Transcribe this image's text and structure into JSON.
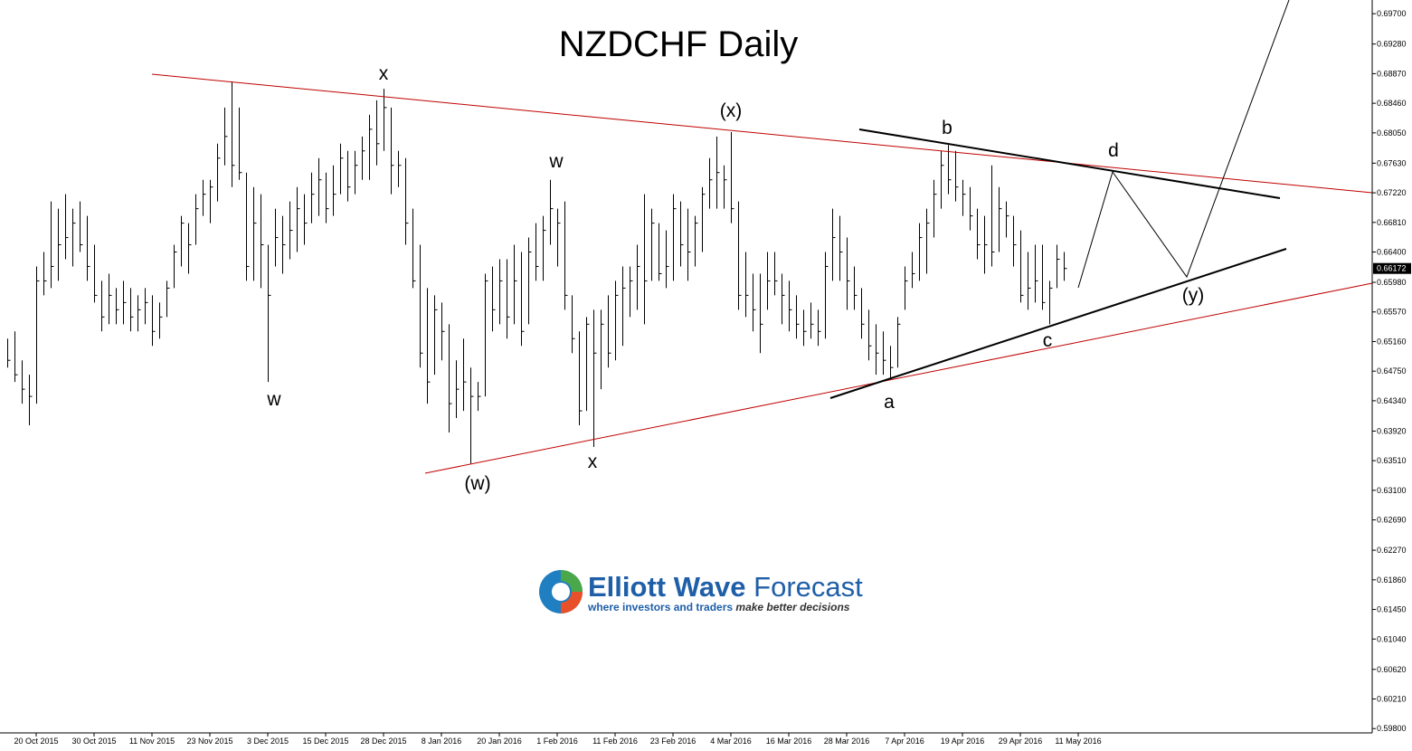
{
  "chart_data": {
    "type": "ohlc",
    "title": "NZDCHF Daily",
    "categories": [
      null,
      null,
      null,
      null,
      "20 Oct 2015",
      null,
      null,
      null,
      null,
      null,
      null,
      null,
      "30 Oct 2015",
      null,
      null,
      null,
      null,
      null,
      null,
      null,
      "11 Nov 2015",
      null,
      null,
      null,
      null,
      null,
      null,
      null,
      "23 Nov 2015",
      null,
      null,
      null,
      null,
      null,
      null,
      null,
      "3 Dec 2015",
      null,
      null,
      null,
      null,
      null,
      null,
      null,
      "15 Dec 2015",
      null,
      null,
      null,
      null,
      null,
      null,
      null,
      "28 Dec 2015",
      null,
      null,
      null,
      null,
      null,
      null,
      null,
      "8 Jan 2016",
      null,
      null,
      null,
      null,
      null,
      null,
      null,
      "20 Jan 2016",
      null,
      null,
      null,
      null,
      null,
      null,
      null,
      "1 Feb 2016",
      null,
      null,
      null,
      null,
      null,
      null,
      null,
      "11 Feb 2016",
      null,
      null,
      null,
      null,
      null,
      null,
      null,
      "23 Feb 2016",
      null,
      null,
      null,
      null,
      null,
      null,
      null,
      "4 Mar 2016",
      null,
      null,
      null,
      null,
      null,
      null,
      null,
      "16 Mar 2016",
      null,
      null,
      null,
      null,
      null,
      null,
      null,
      "28 Mar 2016",
      null,
      null,
      null,
      null,
      null,
      null,
      null,
      "7 Apr 2016",
      null,
      null,
      null,
      null,
      null,
      null,
      null,
      "19 Apr 2016",
      null,
      null,
      null,
      null,
      null,
      null,
      null,
      "29 Apr 2016",
      null,
      null,
      null,
      null,
      null,
      null,
      null,
      "11 May 2016"
    ],
    "high": [
      0.652,
      0.653,
      0.649,
      0.647,
      0.662,
      0.664,
      0.671,
      0.67,
      0.672,
      0.67,
      0.671,
      0.669,
      0.665,
      0.66,
      0.661,
      0.659,
      0.66,
      0.659,
      0.658,
      0.659,
      0.658,
      0.657,
      0.66,
      0.665,
      0.669,
      0.668,
      0.672,
      0.674,
      0.674,
      0.679,
      0.684,
      0.6876,
      0.684,
      0.675,
      0.673,
      0.672,
      0.665,
      0.67,
      0.669,
      0.671,
      0.673,
      0.672,
      0.675,
      0.677,
      0.675,
      0.676,
      0.679,
      0.678,
      0.678,
      0.68,
      0.683,
      0.685,
      0.6866,
      0.684,
      0.678,
      0.677,
      0.67,
      0.665,
      0.659,
      0.658,
      0.657,
      0.654,
      0.649,
      0.652,
      0.648,
      0.646,
      0.661,
      0.662,
      0.663,
      0.663,
      0.665,
      0.664,
      0.666,
      0.668,
      0.669,
      0.674,
      0.67,
      0.671,
      0.658,
      0.653,
      0.655,
      0.656,
      0.656,
      0.658,
      0.66,
      0.662,
      0.662,
      0.665,
      0.672,
      0.67,
      0.668,
      0.667,
      0.672,
      0.671,
      0.67,
      0.669,
      0.673,
      0.677,
      0.68,
      0.676,
      0.6806,
      0.671,
      0.664,
      0.661,
      0.661,
      0.664,
      0.664,
      0.661,
      0.66,
      0.658,
      0.656,
      0.657,
      0.656,
      0.664,
      0.67,
      0.669,
      0.666,
      0.662,
      0.659,
      0.656,
      0.654,
      0.653,
      0.651,
      0.655,
      0.662,
      0.664,
      0.668,
      0.67,
      0.674,
      0.678,
      0.6788,
      0.678,
      0.674,
      0.673,
      0.67,
      0.669,
      0.676,
      0.673,
      0.671,
      0.669,
      0.667,
      0.664,
      0.665,
      0.665,
      0.66,
      0.665,
      0.664,
      null,
      null
    ],
    "low": [
      0.648,
      0.646,
      0.643,
      0.64,
      0.643,
      0.658,
      0.659,
      0.66,
      0.663,
      0.662,
      0.664,
      0.66,
      0.657,
      0.653,
      0.654,
      0.654,
      0.654,
      0.653,
      0.653,
      0.654,
      0.651,
      0.652,
      0.655,
      0.659,
      0.662,
      0.661,
      0.665,
      0.669,
      0.668,
      0.671,
      0.676,
      0.673,
      0.674,
      0.66,
      0.66,
      0.659,
      0.646,
      0.662,
      0.661,
      0.663,
      0.664,
      0.665,
      0.668,
      0.669,
      0.668,
      0.669,
      0.672,
      0.671,
      0.672,
      0.674,
      0.674,
      0.676,
      0.678,
      0.672,
      0.673,
      0.665,
      0.659,
      0.648,
      0.643,
      0.647,
      0.649,
      0.639,
      0.641,
      0.642,
      0.6347,
      0.642,
      0.644,
      0.653,
      0.654,
      0.652,
      0.654,
      0.651,
      0.654,
      0.66,
      0.66,
      0.665,
      0.662,
      0.656,
      0.65,
      0.64,
      0.642,
      0.637,
      0.645,
      0.648,
      0.649,
      0.651,
      0.655,
      0.656,
      0.654,
      0.66,
      0.66,
      0.659,
      0.66,
      0.662,
      0.66,
      0.662,
      0.664,
      0.67,
      0.67,
      0.67,
      0.668,
      0.656,
      0.655,
      0.653,
      0.65,
      0.656,
      0.658,
      0.654,
      0.653,
      0.652,
      0.651,
      0.652,
      0.651,
      0.652,
      0.66,
      0.66,
      0.656,
      0.656,
      0.652,
      0.649,
      0.647,
      0.647,
      0.6465,
      0.648,
      0.656,
      0.659,
      0.66,
      0.661,
      0.666,
      0.67,
      0.672,
      0.671,
      0.669,
      0.667,
      0.663,
      0.661,
      0.662,
      0.664,
      0.666,
      0.662,
      0.657,
      0.656,
      0.657,
      0.656,
      0.654,
      0.659,
      0.66,
      null,
      null
    ],
    "close": [
      0.649,
      0.647,
      0.645,
      0.644,
      0.66,
      0.66,
      0.662,
      0.665,
      0.666,
      0.668,
      0.665,
      0.662,
      0.658,
      0.655,
      0.658,
      0.656,
      0.657,
      0.655,
      0.656,
      0.657,
      0.653,
      0.655,
      0.659,
      0.664,
      0.668,
      0.665,
      0.67,
      0.672,
      0.673,
      0.677,
      0.68,
      0.676,
      0.675,
      0.662,
      0.668,
      0.665,
      0.658,
      0.666,
      0.665,
      0.667,
      0.67,
      0.668,
      0.672,
      0.674,
      0.67,
      0.672,
      0.677,
      0.673,
      0.676,
      0.678,
      0.681,
      0.679,
      0.684,
      0.676,
      0.676,
      0.668,
      0.66,
      0.65,
      0.646,
      0.656,
      0.653,
      0.643,
      0.645,
      0.646,
      0.644,
      0.644,
      0.66,
      0.656,
      0.66,
      0.655,
      0.66,
      0.653,
      0.664,
      0.662,
      0.667,
      0.67,
      0.668,
      0.658,
      0.652,
      0.642,
      0.654,
      0.65,
      0.654,
      0.65,
      0.658,
      0.659,
      0.66,
      0.662,
      0.66,
      0.668,
      0.661,
      0.662,
      0.67,
      0.665,
      0.664,
      0.668,
      0.672,
      0.674,
      0.675,
      0.674,
      0.67,
      0.658,
      0.658,
      0.656,
      0.654,
      0.66,
      0.66,
      0.658,
      0.656,
      0.654,
      0.653,
      0.654,
      0.653,
      0.662,
      0.666,
      0.664,
      0.66,
      0.658,
      0.654,
      0.651,
      0.65,
      0.649,
      0.648,
      0.654,
      0.66,
      0.661,
      0.666,
      0.668,
      0.672,
      0.676,
      0.674,
      0.673,
      0.672,
      0.669,
      0.665,
      0.665,
      0.664,
      0.67,
      0.669,
      0.665,
      0.658,
      0.659,
      0.66,
      0.657,
      0.659,
      0.663,
      0.66172,
      null,
      null
    ],
    "last_price": 0.66172,
    "ylim": [
      0.5974,
      0.6989
    ],
    "yticks": [
      {
        "value": 0.697,
        "label": "0.69700"
      },
      {
        "value": 0.6928,
        "label": "0.69280"
      },
      {
        "value": 0.6887,
        "label": "0.68870"
      },
      {
        "value": 0.6846,
        "label": "0.68460"
      },
      {
        "value": 0.6805,
        "label": "0.68050"
      },
      {
        "value": 0.6763,
        "label": "0.67630"
      },
      {
        "value": 0.6722,
        "label": "0.67220"
      },
      {
        "value": 0.6681,
        "label": "0.66810"
      },
      {
        "value": 0.664,
        "label": "0.66400"
      },
      {
        "value": 0.6598,
        "label": "0.65980"
      },
      {
        "value": 0.6557,
        "label": "0.65570"
      },
      {
        "value": 0.6516,
        "label": "0.65160"
      },
      {
        "value": 0.6475,
        "label": "0.64750"
      },
      {
        "value": 0.6434,
        "label": "0.64340"
      },
      {
        "value": 0.6392,
        "label": "0.63920"
      },
      {
        "value": 0.6351,
        "label": "0.63510"
      },
      {
        "value": 0.631,
        "label": "0.63100"
      },
      {
        "value": 0.6269,
        "label": "0.62690"
      },
      {
        "value": 0.6227,
        "label": "0.62270"
      },
      {
        "value": 0.6186,
        "label": "0.61860"
      },
      {
        "value": 0.6145,
        "label": "0.61450"
      },
      {
        "value": 0.6104,
        "label": "0.61040"
      },
      {
        "value": 0.6062,
        "label": "0.60620"
      },
      {
        "value": 0.6021,
        "label": "0.60210"
      },
      {
        "value": 0.598,
        "label": "0.59800"
      }
    ],
    "color": "#000000",
    "annotations": [
      "w",
      "x",
      "(x)",
      "w",
      "b",
      "d",
      "(w)",
      "x",
      "a",
      "c",
      "(y)"
    ]
  },
  "logo": {
    "name_bold": "Elliott Wave",
    "name_light": "Forecast",
    "tagline_1": "where investors and traders",
    "tagline_2": "make better decisions"
  }
}
